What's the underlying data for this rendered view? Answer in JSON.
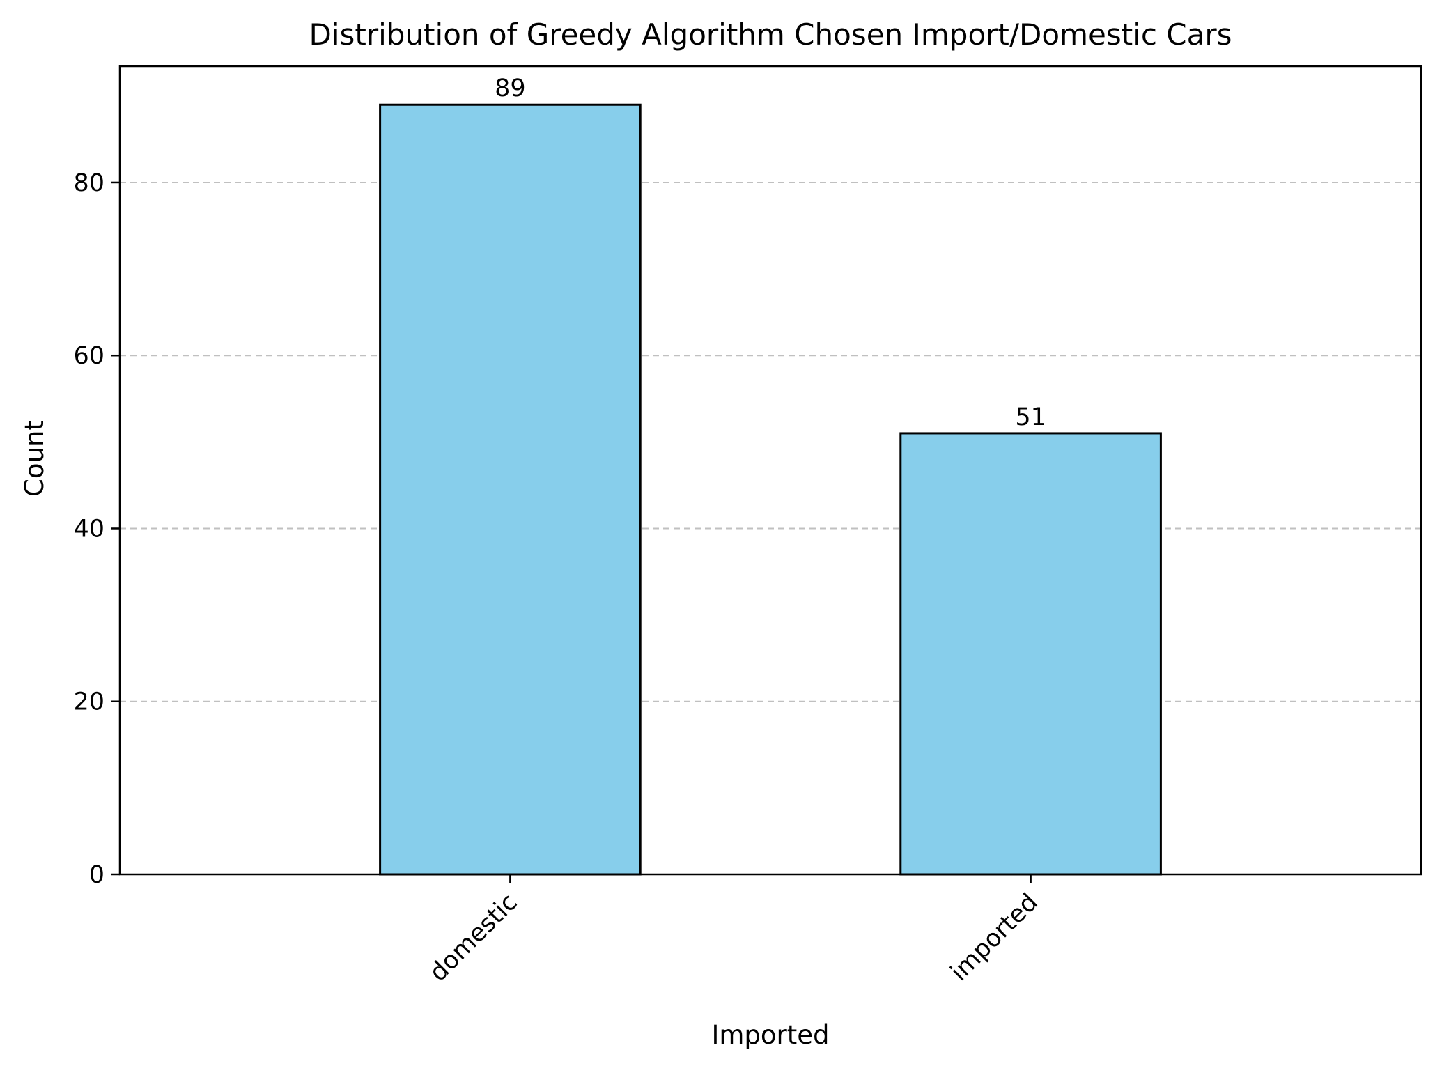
{
  "chart_data": {
    "type": "bar",
    "title": "Distribution of Greedy Algorithm Chosen Import/Domestic Cars",
    "xlabel": "Imported",
    "ylabel": "Count",
    "categories": [
      "domestic",
      "imported"
    ],
    "values": [
      89,
      51
    ],
    "data_labels": [
      "89",
      "51"
    ],
    "ylim": [
      0,
      93.45
    ],
    "yticks": [
      0,
      20,
      40,
      60,
      80
    ],
    "ytick_labels": [
      "0",
      "20",
      "40",
      "60",
      "80"
    ],
    "grid": "y-axis dashed",
    "legend": "none",
    "colors": {
      "bar_fill": "#87CEEB",
      "bar_edge": "#000000",
      "grid": "#c0c0c0"
    }
  }
}
